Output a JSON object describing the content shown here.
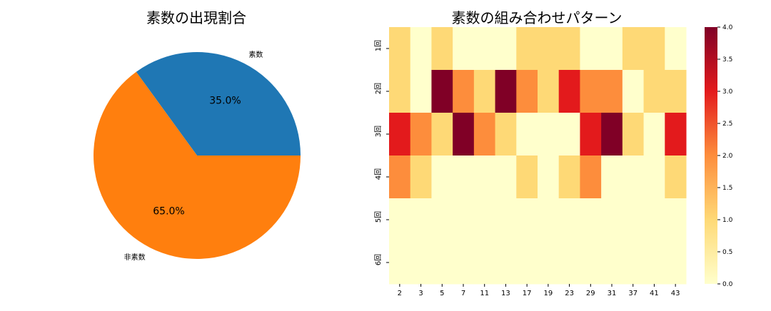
{
  "chart_data": [
    {
      "type": "pie",
      "title": "素数の出現割合",
      "labels": [
        "素数",
        "非素数"
      ],
      "values": [
        35.0,
        65.0
      ],
      "percent_labels": [
        "35.0%",
        "65.0%"
      ],
      "colors": [
        "#1f77b4",
        "#ff7f0e"
      ],
      "startangle": 0
    },
    {
      "type": "heatmap",
      "title": "素数の組み合わせパターン",
      "x_categories": [
        "2",
        "3",
        "5",
        "7",
        "11",
        "13",
        "17",
        "19",
        "23",
        "29",
        "31",
        "37",
        "41",
        "43"
      ],
      "y_categories": [
        "1回",
        "2回",
        "3回",
        "4回",
        "5回",
        "6回"
      ],
      "values": [
        [
          1,
          0,
          1,
          0,
          0,
          0,
          1,
          1,
          1,
          0,
          0,
          1,
          1,
          0
        ],
        [
          1,
          0,
          4,
          2,
          1,
          4,
          2,
          1,
          3,
          2,
          2,
          0,
          1,
          1
        ],
        [
          3,
          2,
          1,
          4,
          2,
          1,
          0,
          0,
          0,
          3,
          4,
          1,
          0,
          3
        ],
        [
          2,
          1,
          0,
          0,
          0,
          0,
          1,
          0,
          1,
          2,
          0,
          0,
          0,
          1
        ],
        [
          0,
          0,
          0,
          0,
          0,
          0,
          0,
          0,
          0,
          0,
          0,
          0,
          0,
          0
        ],
        [
          0,
          0,
          0,
          0,
          0,
          0,
          0,
          0,
          0,
          0,
          0,
          0,
          0,
          0
        ]
      ],
      "colormap": "YlOrRd",
      "vmin": 0,
      "vmax": 4,
      "colorbar_ticks": [
        "0.0",
        "0.5",
        "1.0",
        "1.5",
        "2.0",
        "2.5",
        "3.0",
        "3.5",
        "4.0"
      ],
      "level_colors": [
        "#ffffcc",
        "#fed976",
        "#fd8d3c",
        "#e31a1c",
        "#800026"
      ]
    }
  ]
}
